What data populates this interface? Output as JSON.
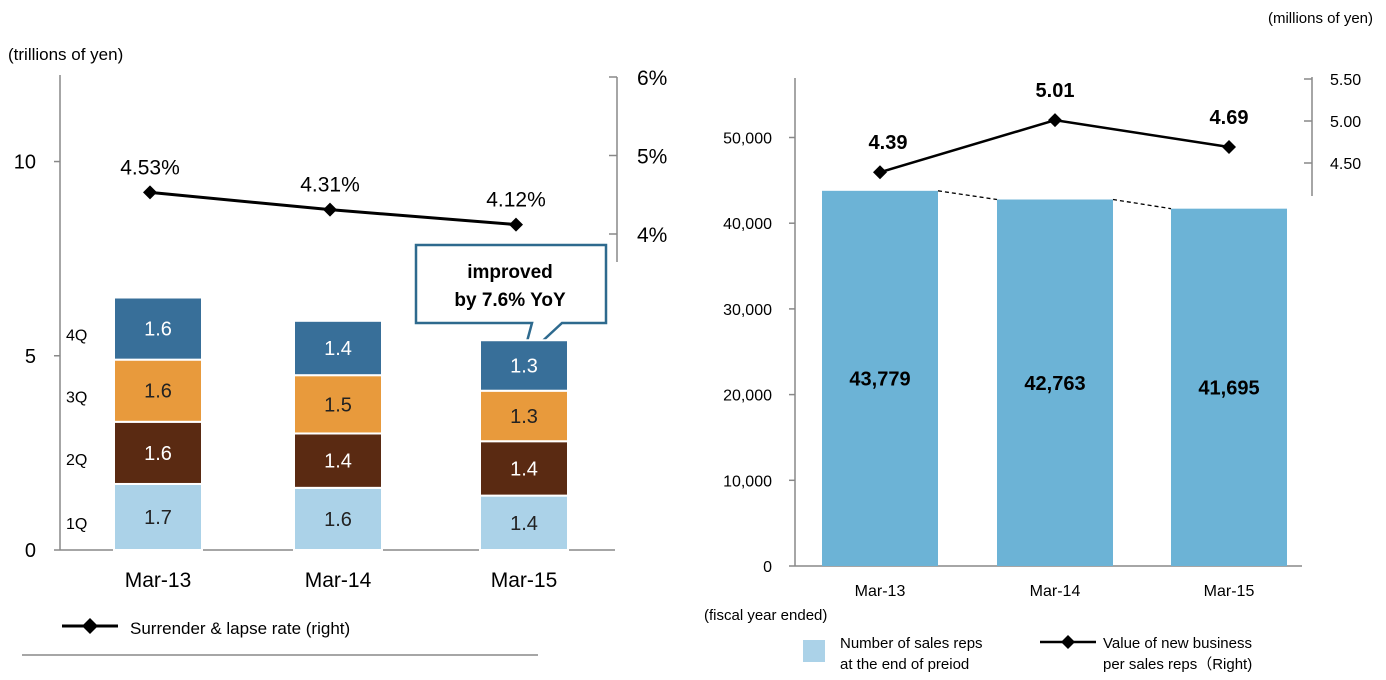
{
  "chart_data": [
    {
      "type": "bar",
      "stacked": true,
      "categories": [
        "Mar-13",
        "Mar-14",
        "Mar-15"
      ],
      "ylabel": "(trillions of yen)",
      "ylim": [
        0,
        13
      ],
      "yticks": [
        0,
        5,
        10
      ],
      "y2lim": [
        3,
        6
      ],
      "y2ticks": [
        "4%",
        "5%",
        "6%"
      ],
      "series": [
        {
          "name": "1Q",
          "values": [
            1.7,
            1.6,
            1.4
          ],
          "color": "#abd2e8",
          "label_color": "#222222"
        },
        {
          "name": "2Q",
          "values": [
            1.6,
            1.4,
            1.4
          ],
          "color": "#5a2a12",
          "label_color": "#ffffff"
        },
        {
          "name": "3Q",
          "values": [
            1.6,
            1.5,
            1.3
          ],
          "color": "#e89a3c",
          "label_color": "#222222"
        },
        {
          "name": "4Q",
          "values": [
            1.6,
            1.4,
            1.3
          ],
          "color": "#386f99",
          "label_color": "#ffffff"
        }
      ],
      "line_series": {
        "name": "Surrender & lapse rate (right)",
        "values": [
          4.53,
          4.31,
          4.12
        ],
        "labels": [
          "4.53%",
          "4.31%",
          "4.12%"
        ]
      },
      "callout": {
        "line1": "improved",
        "line2": "by 7.6% YoY"
      },
      "legend_position": "bottom-left"
    },
    {
      "type": "bar",
      "categories": [
        "Mar-13",
        "Mar-14",
        "Mar-15"
      ],
      "xlabel": "(fiscal year ended)",
      "ylim": [
        0,
        50000
      ],
      "yticks": [
        "0",
        "10,000",
        "20,000",
        "30,000",
        "40,000",
        "50,000"
      ],
      "y2label": "(millions of yen)",
      "y2lim": [
        4.25,
        5.5
      ],
      "y2ticks": [
        "4.50",
        "5.00",
        "5.50"
      ],
      "bar_series": {
        "name_line1": "Number of sales reps",
        "name_line2": "at the end of preiod",
        "values": [
          43779,
          42763,
          41695
        ],
        "labels": [
          "43,779",
          "42,763",
          "41,695"
        ],
        "color": "#6cb3d6"
      },
      "line_series": {
        "name_line1": "Value of new business",
        "name_line2": "per sales reps（Right)",
        "values": [
          4.39,
          5.01,
          4.69
        ],
        "labels": [
          "4.39",
          "5.01",
          "4.69"
        ]
      },
      "legend_position": "bottom"
    }
  ]
}
